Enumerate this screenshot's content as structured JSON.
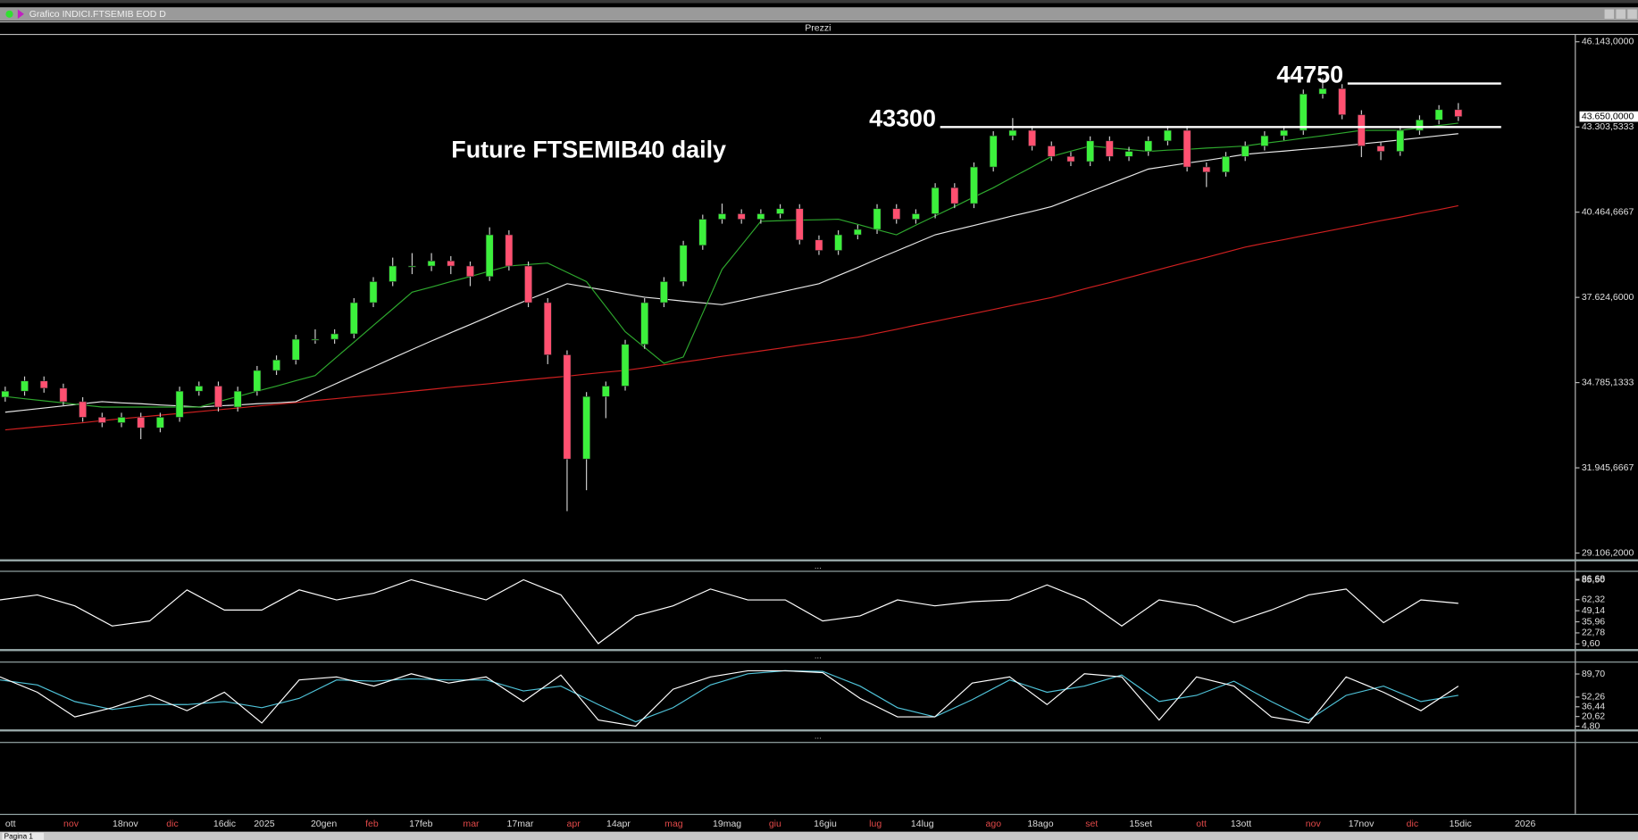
{
  "window": {
    "title": "Grafico INDICI.FTSEMIB EOD D"
  },
  "panel_title": "Prezzi",
  "tabs": [
    "Pagina 1"
  ],
  "chart_data": [
    {
      "type": "candlestick",
      "title": "Future FTSEMIB40 daily",
      "ylim": [
        29106.2,
        46143
      ],
      "yticks": [
        {
          "value": 46143,
          "label": "46.143,0000"
        },
        {
          "value": 40464.6667,
          "label": "40.464,6667"
        },
        {
          "value": 37624.6,
          "label": "37.624,6000"
        },
        {
          "value": 34785.1333,
          "label": "34.785,1333"
        },
        {
          "value": 31945.6667,
          "label": "31.945,6667"
        },
        {
          "value": 29106.2,
          "label": "29.106,2000"
        }
      ],
      "price_markers": [
        {
          "value": 43650,
          "label": "43.650,0000"
        },
        {
          "value": 43303.5333,
          "label": "43.303,5333"
        }
      ],
      "levels": [
        43300,
        44750
      ],
      "level_color": "#ffffff",
      "up_color": "#3cf03c",
      "down_color": "#ff5070",
      "date_labels": [
        {
          "label": "ott",
          "color": "#d9d9d9"
        },
        {
          "label": "nov",
          "color": "#e04848"
        },
        {
          "label": "18nov",
          "color": "#d9d9d9"
        },
        {
          "label": "dic",
          "color": "#e04848"
        },
        {
          "label": "16dic",
          "color": "#d9d9d9"
        },
        {
          "label": "2025",
          "color": "#d9d9d9"
        },
        {
          "label": "20gen",
          "color": "#d9d9d9"
        },
        {
          "label": "feb",
          "color": "#e04848"
        },
        {
          "label": "17feb",
          "color": "#d9d9d9"
        },
        {
          "label": "mar",
          "color": "#e04848"
        },
        {
          "label": "17mar",
          "color": "#d9d9d9"
        },
        {
          "label": "apr",
          "color": "#e04848"
        },
        {
          "label": "14apr",
          "color": "#d9d9d9"
        },
        {
          "label": "mag",
          "color": "#e04848"
        },
        {
          "label": "19mag",
          "color": "#d9d9d9"
        },
        {
          "label": "giu",
          "color": "#e04848"
        },
        {
          "label": "16giu",
          "color": "#d9d9d9"
        },
        {
          "label": "lug",
          "color": "#e04848"
        },
        {
          "label": "14lug",
          "color": "#d9d9d9"
        },
        {
          "label": "ago",
          "color": "#e04848"
        },
        {
          "label": "18ago",
          "color": "#d9d9d9"
        },
        {
          "label": "set",
          "color": "#e04848"
        },
        {
          "label": "15set",
          "color": "#d9d9d9"
        },
        {
          "label": "ott",
          "color": "#e04848"
        },
        {
          "label": "13ott",
          "color": "#d9d9d9"
        },
        {
          "label": "nov",
          "color": "#e04848"
        },
        {
          "label": "17nov",
          "color": "#d9d9d9"
        },
        {
          "label": "dic",
          "color": "#e04848"
        },
        {
          "label": "15dic",
          "color": "#d9d9d9"
        },
        {
          "label": "2026",
          "color": "#d9d9d9"
        }
      ],
      "candles": [
        [
          34300,
          34650,
          34150,
          34500
        ],
        [
          34500,
          34990,
          34350,
          34840
        ],
        [
          34840,
          34990,
          34450,
          34600
        ],
        [
          34600,
          34750,
          34000,
          34150
        ],
        [
          34150,
          34300,
          33480,
          33630
        ],
        [
          33630,
          33780,
          33300,
          33450
        ],
        [
          33450,
          33780,
          33300,
          33630
        ],
        [
          33630,
          33780,
          32900,
          33280
        ],
        [
          33280,
          33780,
          33130,
          33630
        ],
        [
          33630,
          34650,
          33480,
          34500
        ],
        [
          34500,
          34820,
          34350,
          34670
        ],
        [
          34670,
          34820,
          33820,
          33970
        ],
        [
          33970,
          34650,
          33820,
          34500
        ],
        [
          34500,
          35340,
          34350,
          35190
        ],
        [
          35190,
          35690,
          35040,
          35540
        ],
        [
          35540,
          36380,
          35390,
          36230
        ],
        [
          36230,
          36560,
          36080,
          36230
        ],
        [
          36230,
          36560,
          36080,
          36410
        ],
        [
          36410,
          37600,
          36260,
          37450
        ],
        [
          37450,
          38300,
          37300,
          38150
        ],
        [
          38150,
          38950,
          38000,
          38670
        ],
        [
          38670,
          39100,
          38400,
          38670
        ],
        [
          38670,
          39100,
          38500,
          38840
        ],
        [
          38840,
          39000,
          38400,
          38670
        ],
        [
          38670,
          38820,
          38000,
          38320
        ],
        [
          38320,
          39960,
          38170,
          39710
        ],
        [
          39710,
          39860,
          38520,
          38670
        ],
        [
          38670,
          38820,
          37300,
          37450
        ],
        [
          37450,
          37600,
          35400,
          35710
        ],
        [
          35710,
          35860,
          30500,
          32240
        ],
        [
          32240,
          34470,
          31200,
          34320
        ],
        [
          34320,
          34820,
          33600,
          34670
        ],
        [
          34670,
          36210,
          34520,
          36060
        ],
        [
          36060,
          37600,
          35910,
          37450
        ],
        [
          37450,
          38300,
          37300,
          38150
        ],
        [
          38150,
          39510,
          38000,
          39360
        ],
        [
          39360,
          40380,
          39210,
          40230
        ],
        [
          40230,
          40750,
          40080,
          40410
        ],
        [
          40410,
          40560,
          40080,
          40230
        ],
        [
          40230,
          40560,
          40080,
          40410
        ],
        [
          40410,
          40730,
          40260,
          40580
        ],
        [
          40580,
          40730,
          39390,
          39540
        ],
        [
          39540,
          39690,
          39040,
          39190
        ],
        [
          39190,
          39860,
          39040,
          39710
        ],
        [
          39710,
          40040,
          39560,
          39890
        ],
        [
          39890,
          40730,
          39740,
          40580
        ],
        [
          40580,
          40730,
          40080,
          40230
        ],
        [
          40230,
          40560,
          40080,
          40410
        ],
        [
          40410,
          41430,
          40260,
          41280
        ],
        [
          41280,
          41430,
          40600,
          40750
        ],
        [
          40750,
          42120,
          40600,
          41970
        ],
        [
          41970,
          43160,
          41820,
          43010
        ],
        [
          43010,
          43600,
          42860,
          43190
        ],
        [
          43190,
          43340,
          42520,
          42670
        ],
        [
          42670,
          42820,
          42170,
          42320
        ],
        [
          42320,
          42470,
          42000,
          42150
        ],
        [
          42150,
          42990,
          42000,
          42840
        ],
        [
          42840,
          42990,
          42170,
          42320
        ],
        [
          42320,
          42640,
          42170,
          42490
        ],
        [
          42490,
          42990,
          42340,
          42840
        ],
        [
          42840,
          43340,
          42690,
          43190
        ],
        [
          43190,
          43340,
          41820,
          41970
        ],
        [
          41970,
          42120,
          41300,
          41800
        ],
        [
          41800,
          42470,
          41650,
          42320
        ],
        [
          42320,
          42820,
          42170,
          42670
        ],
        [
          42670,
          43160,
          42520,
          43010
        ],
        [
          43010,
          43340,
          42860,
          43190
        ],
        [
          43190,
          44550,
          43040,
          44400
        ],
        [
          44400,
          44930,
          44250,
          44580
        ],
        [
          44580,
          44730,
          43560,
          43710
        ],
        [
          43710,
          43860,
          42300,
          42670
        ],
        [
          42670,
          42820,
          42200,
          42490
        ],
        [
          42490,
          43340,
          42340,
          43190
        ],
        [
          43190,
          43690,
          43040,
          43540
        ],
        [
          43540,
          44030,
          43390,
          43880
        ],
        [
          43880,
          44100,
          43500,
          43650
        ]
      ],
      "series": [
        {
          "color": "#d02020",
          "values": [
            33210,
            33270,
            33330,
            33390,
            33450,
            33520,
            33580,
            33640,
            33700,
            33760,
            33820,
            33880,
            33940,
            34000,
            34060,
            34120,
            34190,
            34250,
            34310,
            34370,
            34430,
            34500,
            34560,
            34630,
            34690,
            34750,
            34820,
            34880,
            34940,
            35000,
            35070,
            35130,
            35190,
            35280,
            35380,
            35470,
            35560,
            35660,
            35750,
            35840,
            35930,
            36030,
            36120,
            36210,
            36300,
            36430,
            36560,
            36700,
            36830,
            36960,
            37090,
            37220,
            37360,
            37490,
            37620,
            37790,
            37960,
            38120,
            38290,
            38460,
            38630,
            38800,
            38960,
            39130,
            39300,
            39430,
            39550,
            39680,
            39800,
            39930,
            40050,
            40180,
            40300,
            40430,
            40550,
            40680
          ]
        },
        {
          "color": "#e8e8e8",
          "values": [
            33800,
            33870,
            33940,
            34010,
            34080,
            34150,
            34110,
            34080,
            34040,
            34010,
            33970,
            34010,
            34040,
            34080,
            34110,
            34150,
            34440,
            34730,
            35020,
            35310,
            35600,
            35890,
            36170,
            36450,
            36720,
            37000,
            37280,
            37550,
            37810,
            38080,
            37970,
            37860,
            37740,
            37630,
            37570,
            37500,
            37440,
            37380,
            37520,
            37660,
            37800,
            37940,
            38080,
            38350,
            38620,
            38900,
            39170,
            39440,
            39710,
            39870,
            40020,
            40180,
            40340,
            40490,
            40650,
            40900,
            41150,
            41400,
            41650,
            41900,
            42000,
            42100,
            42190,
            42290,
            42390,
            42450,
            42500,
            42560,
            42610,
            42670,
            42740,
            42800,
            42870,
            42940,
            43010,
            43080
          ]
        },
        {
          "color": "#2ea82e",
          "values": [
            34320,
            34250,
            34180,
            34110,
            34040,
            33970,
            33970,
            33970,
            33970,
            33970,
            33970,
            34150,
            34320,
            34500,
            34670,
            34850,
            35020,
            35580,
            36130,
            36690,
            37240,
            37800,
            37970,
            38150,
            38320,
            38500,
            38670,
            38720,
            38770,
            38460,
            38150,
            37320,
            36480,
            35960,
            35430,
            35640,
            37100,
            38560,
            39360,
            40160,
            40180,
            40200,
            40210,
            40230,
            40060,
            39880,
            39710,
            40030,
            40340,
            40650,
            40970,
            41280,
            41630,
            41970,
            42320,
            42500,
            42670,
            42610,
            42550,
            42490,
            42530,
            42560,
            42600,
            42630,
            42670,
            42760,
            42840,
            42930,
            43010,
            43100,
            43190,
            43190,
            43190,
            43270,
            43350,
            43430
          ]
        }
      ]
    },
    {
      "type": "line",
      "ylim": [
        6,
        93
      ],
      "yticks": [
        {
          "value": 86.68,
          "label": "86,68"
        },
        {
          "value": 85.5,
          "label": "85,50"
        },
        {
          "value": 62.32,
          "label": "62,32"
        },
        {
          "value": 49.14,
          "label": "49,14"
        },
        {
          "value": 35.96,
          "label": "35,96"
        },
        {
          "value": 22.78,
          "label": "22,78"
        },
        {
          "value": 9.6,
          "label": "9,60"
        }
      ],
      "series": [
        {
          "color": "#ffffff",
          "values": [
            62,
            68,
            55,
            31,
            37,
            74,
            50,
            50,
            74,
            62,
            70,
            86,
            74,
            62,
            86,
            68,
            10,
            43,
            55,
            75,
            62,
            62,
            37,
            43,
            62,
            55,
            60,
            62,
            80,
            62,
            31,
            62,
            55,
            35,
            50,
            68,
            75,
            35,
            62,
            58
          ]
        }
      ]
    },
    {
      "type": "line",
      "ylim": [
        1.4,
        104.8
      ],
      "yticks": [
        {
          "value": 89.7,
          "label": "89,70"
        },
        {
          "value": 52.26,
          "label": "52,26"
        },
        {
          "value": 36.44,
          "label": "36,44"
        },
        {
          "value": 20.62,
          "label": "20,62"
        },
        {
          "value": 4.8,
          "label": "4,80"
        }
      ],
      "series": [
        {
          "color": "#4fc3d9",
          "values": [
            80,
            72,
            45,
            32,
            40,
            40,
            45,
            35,
            50,
            80,
            78,
            82,
            80,
            80,
            62,
            70,
            40,
            12,
            35,
            72,
            90,
            95,
            94,
            70,
            35,
            20,
            48,
            80,
            60,
            70,
            88,
            45,
            55,
            78,
            45,
            15,
            55,
            70,
            45,
            55
          ]
        },
        {
          "color": "#ffffff",
          "values": [
            85,
            60,
            20,
            35,
            55,
            30,
            60,
            10,
            80,
            85,
            70,
            90,
            75,
            85,
            45,
            88,
            15,
            5,
            65,
            85,
            95,
            95,
            92,
            50,
            20,
            20,
            75,
            85,
            40,
            90,
            85,
            15,
            85,
            70,
            20,
            10,
            85,
            60,
            30,
            70
          ]
        }
      ]
    }
  ]
}
